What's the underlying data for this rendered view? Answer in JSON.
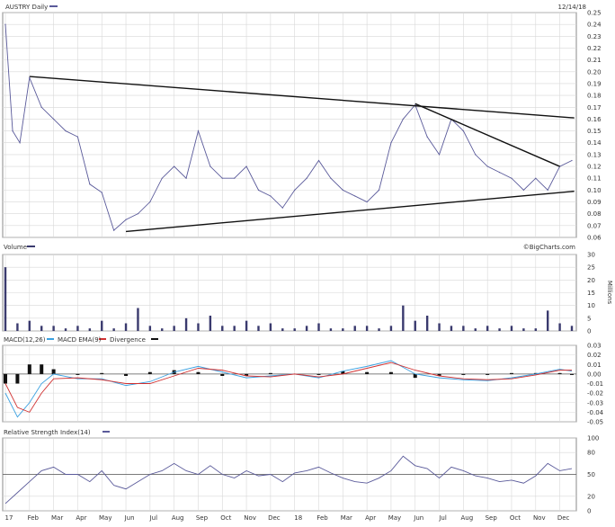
{
  "price_panel": {
    "title": "AUSTRY Daily",
    "date": "12/14/18"
  },
  "volume_panel": {
    "title": "Volume",
    "unit": "Millions",
    "credit": "©BigCharts.com"
  },
  "macd_panel": {
    "title": "MACD(12,26)",
    "ema_label": "MACD EMA(9)",
    "div_label": "Divergence"
  },
  "rsi_panel": {
    "title": "Relative Strength Index(14)"
  },
  "colors": {
    "price": "#5a5a9a",
    "volume": "#3a3a6e",
    "macd": "#3aa0e0",
    "ema": "#d03030",
    "divergence": "#111111"
  },
  "chart_data": [
    {
      "type": "line",
      "title": "AUSTRY Daily",
      "x_tick_labels": [
        "17",
        "Feb",
        "Mar",
        "Apr",
        "May",
        "Jun",
        "Jul",
        "Aug",
        "Sep",
        "Oct",
        "Nov",
        "Dec",
        "18",
        "Feb",
        "Mar",
        "Apr",
        "May",
        "Jun",
        "Jul",
        "Aug",
        "Sep",
        "Oct",
        "Nov",
        "Dec"
      ],
      "ylim": [
        0.06,
        0.25
      ],
      "y_ticks": [
        "0.25",
        "0.24",
        "0.23",
        "0.22",
        "0.21",
        "0.20",
        "0.19",
        "0.18",
        "0.17",
        "0.16",
        "0.15",
        "0.14",
        "0.13",
        "0.12",
        "0.11",
        "0.10",
        "0.09",
        "0.08",
        "0.07",
        "0.06"
      ],
      "x_index": [
        0,
        0.3,
        0.6,
        1,
        1.5,
        2,
        2.5,
        3,
        3.5,
        4,
        4.5,
        5,
        5.5,
        6,
        6.5,
        7,
        7.5,
        8,
        8.5,
        9,
        9.5,
        10,
        10.5,
        11,
        11.5,
        12,
        12.5,
        13,
        13.5,
        14,
        14.5,
        15,
        15.5,
        16,
        16.5,
        17,
        17.5,
        18,
        18.5,
        19,
        19.5,
        20,
        20.5,
        21,
        21.5,
        22,
        22.5,
        23,
        23.5
      ],
      "values": [
        0.24,
        0.15,
        0.14,
        0.195,
        0.17,
        0.16,
        0.15,
        0.145,
        0.105,
        0.098,
        0.066,
        0.075,
        0.08,
        0.09,
        0.11,
        0.12,
        0.11,
        0.15,
        0.12,
        0.11,
        0.11,
        0.12,
        0.1,
        0.095,
        0.085,
        0.1,
        0.11,
        0.125,
        0.11,
        0.1,
        0.095,
        0.09,
        0.1,
        0.14,
        0.16,
        0.172,
        0.145,
        0.13,
        0.16,
        0.15,
        0.13,
        0.12,
        0.115,
        0.11,
        0.1,
        0.11,
        0.1,
        0.12,
        0.125
      ],
      "trendlines": [
        {
          "from": [
            1.0,
            0.196
          ],
          "to": [
            23.6,
            0.161
          ]
        },
        {
          "from": [
            5.0,
            0.065
          ],
          "to": [
            23.6,
            0.099
          ]
        },
        {
          "from": [
            17.0,
            0.173
          ],
          "to": [
            23.0,
            0.12
          ]
        }
      ]
    },
    {
      "type": "bar",
      "title": "Volume",
      "ylabel": "Millions",
      "ylim": [
        0,
        30
      ],
      "y_ticks": [
        "30",
        "25",
        "20",
        "15",
        "10",
        "5",
        "0"
      ],
      "x_index": [
        0,
        0.5,
        1,
        1.5,
        2,
        2.5,
        3,
        3.5,
        4,
        4.5,
        5,
        5.5,
        6,
        6.5,
        7,
        7.5,
        8,
        8.5,
        9,
        9.5,
        10,
        10.5,
        11,
        11.5,
        12,
        12.5,
        13,
        13.5,
        14,
        14.5,
        15,
        15.5,
        16,
        16.5,
        17,
        17.5,
        18,
        18.5,
        19,
        19.5,
        20,
        20.5,
        21,
        21.5,
        22,
        22.5,
        23,
        23.5
      ],
      "values": [
        25,
        3,
        4,
        2,
        2,
        1,
        2,
        1,
        4,
        1,
        3,
        9,
        2,
        1,
        2,
        5,
        3,
        6,
        2,
        2,
        4,
        2,
        3,
        1,
        1,
        2,
        3,
        1,
        1,
        2,
        2,
        1,
        2,
        10,
        4,
        6,
        3,
        2,
        2,
        1,
        2,
        1,
        2,
        1,
        1,
        8,
        3,
        2
      ]
    },
    {
      "type": "line",
      "title": "MACD(12,26)",
      "ylim": [
        -0.05,
        0.03
      ],
      "y_ticks": [
        "0.03",
        "0.02",
        "0.01",
        "0.00",
        "-0.01",
        "-0.02",
        "-0.03",
        "-0.04",
        "-0.05"
      ],
      "x_index": [
        0,
        0.5,
        1,
        1.5,
        2,
        3,
        4,
        5,
        6,
        7,
        8,
        9,
        10,
        11,
        12,
        13,
        14,
        15,
        16,
        17,
        18,
        19,
        20,
        21,
        22,
        23,
        23.5
      ],
      "series": [
        {
          "name": "MACD(12,26)",
          "values": [
            -0.02,
            -0.045,
            -0.03,
            -0.01,
            0.0,
            -0.005,
            -0.005,
            -0.012,
            -0.008,
            0.002,
            0.008,
            0.002,
            -0.004,
            -0.002,
            0.0,
            -0.004,
            0.003,
            0.008,
            0.014,
            0.0,
            -0.004,
            -0.006,
            -0.007,
            -0.004,
            0.0,
            0.005,
            0.003
          ]
        },
        {
          "name": "MACD EMA(9)",
          "values": [
            -0.01,
            -0.035,
            -0.04,
            -0.02,
            -0.005,
            -0.004,
            -0.006,
            -0.01,
            -0.01,
            -0.002,
            0.006,
            0.004,
            -0.002,
            -0.003,
            0.0,
            -0.003,
            0.0,
            0.006,
            0.012,
            0.004,
            -0.002,
            -0.005,
            -0.006,
            -0.005,
            -0.001,
            0.004,
            0.004
          ]
        },
        {
          "name": "Divergence",
          "values": [
            -0.01,
            -0.01,
            0.01,
            0.01,
            0.005,
            -0.001,
            0.001,
            -0.002,
            0.002,
            0.004,
            0.002,
            -0.002,
            -0.002,
            0.001,
            0.0,
            -0.001,
            0.003,
            0.002,
            0.002,
            -0.004,
            -0.002,
            -0.001,
            -0.001,
            0.001,
            0.001,
            0.001,
            -0.001
          ]
        }
      ]
    },
    {
      "type": "line",
      "title": "Relative Strength Index(14)",
      "ylim": [
        0,
        100
      ],
      "y_ticks": [
        "100",
        "80",
        "50",
        "20",
        "0"
      ],
      "x_index": [
        0,
        0.5,
        1,
        1.5,
        2,
        2.5,
        3,
        3.5,
        4,
        4.5,
        5,
        5.5,
        6,
        6.5,
        7,
        7.5,
        8,
        8.5,
        9,
        9.5,
        10,
        10.5,
        11,
        11.5,
        12,
        12.5,
        13,
        13.5,
        14,
        14.5,
        15,
        15.5,
        16,
        16.5,
        17,
        17.5,
        18,
        18.5,
        19,
        19.5,
        20,
        20.5,
        21,
        21.5,
        22,
        22.5,
        23,
        23.5
      ],
      "values": [
        10,
        25,
        40,
        55,
        60,
        50,
        50,
        40,
        55,
        35,
        30,
        40,
        50,
        55,
        65,
        55,
        50,
        62,
        50,
        45,
        55,
        48,
        50,
        40,
        52,
        55,
        60,
        52,
        45,
        40,
        38,
        45,
        55,
        75,
        62,
        58,
        45,
        60,
        55,
        48,
        45,
        40,
        42,
        38,
        48,
        65,
        55,
        58
      ]
    }
  ]
}
